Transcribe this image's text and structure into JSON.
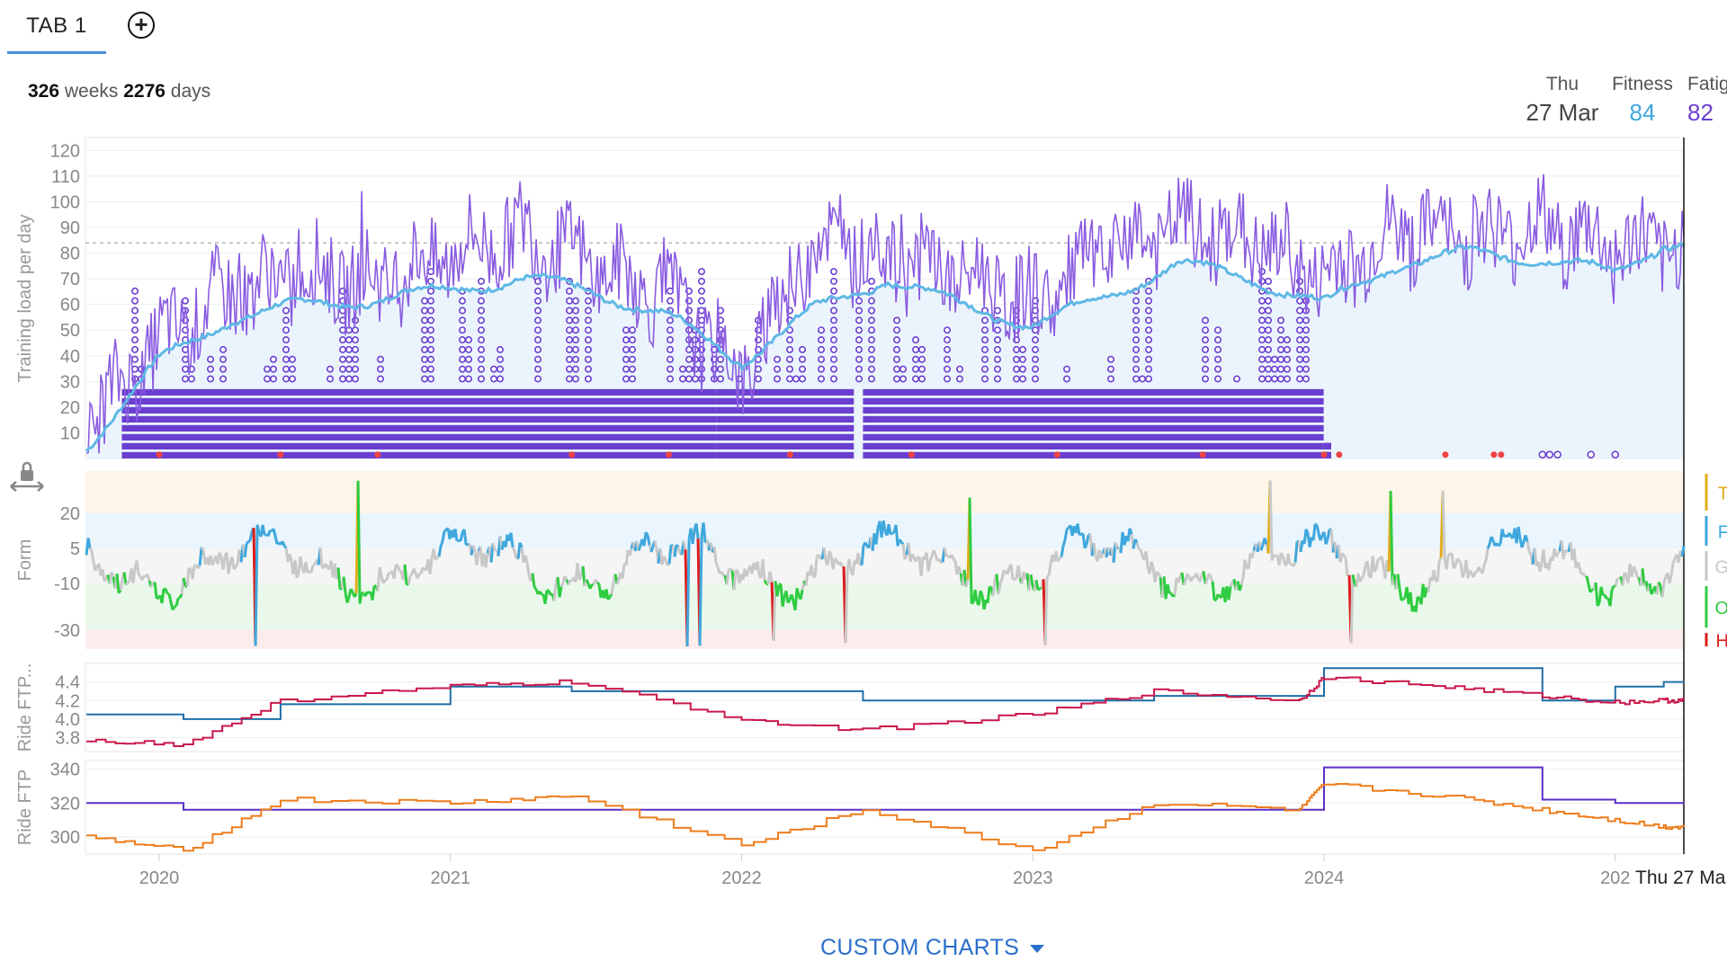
{
  "tabs": {
    "active_label": "TAB 1"
  },
  "period": {
    "weeks": "326",
    "weeks_label": " weeks ",
    "days": "2276",
    "days_label": " days"
  },
  "header": {
    "date_day": "Thu",
    "date": "27 Mar",
    "fitness_label": "Fitness",
    "fitness_value": "84",
    "fatigue_label": "Fatig",
    "fatigue_value": "82"
  },
  "custom_charts": "CUSTOM CHARTS",
  "colors": {
    "fitness": "#5fb8e6",
    "fatigue": "#7b4fd6",
    "activity": "#6a3fd0",
    "form_transition": "#e2ad1c",
    "form_fresh": "#3ea7dc",
    "form_grey": "#c8c8c8",
    "form_optimal": "#2ecc40",
    "form_high_risk": "#dd1c1c",
    "ftp_wkg_a": "#1f6fa8",
    "ftp_wkg_b": "#c9184a",
    "ftp_a": "#5b2fc9",
    "ftp_b": "#ee7d1c"
  },
  "chart_data": [
    {
      "type": "line",
      "title": "",
      "ylabel": "Training load per day",
      "ylim": [
        0,
        125
      ],
      "yticks": [
        "120",
        "110",
        "100",
        "90",
        "80",
        "70",
        "60",
        "50",
        "40",
        "30",
        "20",
        "10"
      ],
      "xticks": [
        "2020",
        "2021",
        "2022",
        "2023",
        "2024",
        "202"
      ],
      "cursor_label": "Thu 27 Ma",
      "reference_line": 84,
      "series": [
        {
          "name": "Fitness",
          "x": [
            "2019-10",
            "2020-01",
            "2020-04",
            "2020-07",
            "2020-10",
            "2021-01",
            "2021-04",
            "2021-07",
            "2021-10",
            "2022-01",
            "2022-04",
            "2022-07",
            "2022-10",
            "2023-01",
            "2023-04",
            "2023-07",
            "2023-10",
            "2024-01",
            "2024-04",
            "2024-07",
            "2024-10",
            "2025-01",
            "2025-03"
          ],
          "values": [
            5,
            38,
            55,
            60,
            62,
            66,
            70,
            65,
            55,
            38,
            58,
            70,
            60,
            52,
            63,
            76,
            70,
            60,
            76,
            80,
            78,
            72,
            84
          ]
        },
        {
          "name": "Fatigue",
          "x": [
            "2019-10",
            "2020-01",
            "2020-04",
            "2020-07",
            "2020-10",
            "2021-01",
            "2021-04",
            "2021-07",
            "2021-10",
            "2022-01",
            "2022-04",
            "2022-07",
            "2022-10",
            "2023-01",
            "2023-04",
            "2023-07",
            "2023-10",
            "2024-01",
            "2024-04",
            "2024-07",
            "2024-10",
            "2025-01",
            "2025-03"
          ],
          "values": [
            12,
            45,
            65,
            72,
            68,
            80,
            88,
            75,
            62,
            32,
            85,
            78,
            72,
            60,
            80,
            90,
            85,
            70,
            88,
            86,
            90,
            82,
            82
          ]
        }
      ],
      "activity_stack_ranges": [
        [
          "2019-11-15",
          "2021-11-30"
        ],
        [
          "2021-11-30",
          "2022-05-20"
        ],
        [
          "2022-06-01",
          "2023-12-31"
        ]
      ],
      "activity_stack_max": 28,
      "activity_stack_end_short": "2024-01-10"
    },
    {
      "type": "area",
      "ylabel": "Form",
      "ylim": [
        -38,
        38
      ],
      "yticks": [
        "20",
        "5",
        "-10",
        "-30"
      ],
      "zones": [
        "T",
        "F",
        "G",
        "O",
        "H"
      ]
    },
    {
      "type": "line",
      "ylabel": "Ride FTP...",
      "ylim": [
        3.65,
        4.6
      ],
      "yticks": [
        "4.4",
        "4.2",
        "4.0",
        "3.8"
      ],
      "series": [
        {
          "x": [
            "2019-10",
            "2020-02",
            "2020-06",
            "2021-01",
            "2021-06",
            "2022-01",
            "2022-06",
            "2023-01",
            "2023-06",
            "2023-12",
            "2024-01",
            "2024-06",
            "2024-10",
            "2025-01",
            "2025-03"
          ],
          "values": [
            4.05,
            4.0,
            4.16,
            4.35,
            4.3,
            4.3,
            4.2,
            4.2,
            4.25,
            4.25,
            4.55,
            4.55,
            4.2,
            4.35,
            4.4
          ]
        },
        {
          "x": [
            "2019-10",
            "2020-02",
            "2020-06",
            "2021-01",
            "2021-06",
            "2022-01",
            "2022-06",
            "2023-01",
            "2023-06",
            "2023-12",
            "2024-01",
            "2024-06",
            "2024-10",
            "2025-01",
            "2025-03"
          ],
          "values": [
            3.78,
            3.72,
            4.2,
            4.35,
            4.4,
            4.0,
            3.88,
            4.05,
            4.3,
            4.2,
            4.45,
            4.35,
            4.25,
            4.18,
            4.2
          ]
        }
      ]
    },
    {
      "type": "line",
      "ylabel": "Ride FTP",
      "ylim": [
        290,
        345
      ],
      "yticks": [
        "340",
        "320",
        "300"
      ],
      "series": [
        {
          "x": [
            "2019-10",
            "2020-02",
            "2020-06",
            "2021-01",
            "2021-06",
            "2022-01",
            "2022-06",
            "2023-01",
            "2023-06",
            "2023-12",
            "2024-01",
            "2024-06",
            "2024-10",
            "2025-01",
            "2025-03"
          ],
          "values": [
            320,
            316,
            316,
            316,
            316,
            316,
            316,
            316,
            316,
            316,
            341,
            341,
            322,
            320,
            320
          ]
        },
        {
          "x": [
            "2019-10",
            "2020-02",
            "2020-06",
            "2021-01",
            "2021-06",
            "2022-01",
            "2022-06",
            "2023-01",
            "2023-06",
            "2023-12",
            "2024-01",
            "2024-06",
            "2024-10",
            "2025-01",
            "2025-03"
          ],
          "values": [
            300,
            292,
            322,
            320,
            324,
            295,
            316,
            292,
            320,
            316,
            331,
            324,
            316,
            310,
            306
          ]
        }
      ]
    }
  ]
}
